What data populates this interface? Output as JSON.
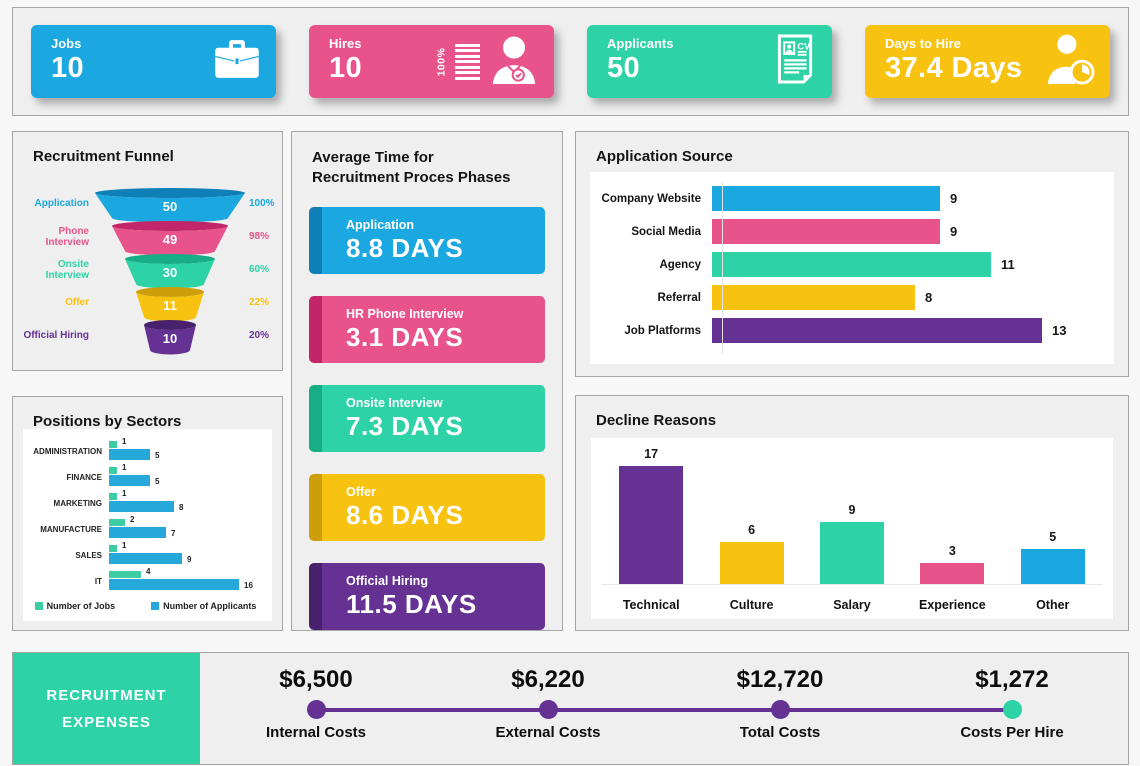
{
  "kpis": [
    {
      "label": "Jobs",
      "value": "10",
      "color": "#1BA8E0",
      "icon": "briefcase-icon"
    },
    {
      "label": "Hires",
      "value": "10",
      "side_label": "100%",
      "color": "#E8538C",
      "icon": "person-check-icon"
    },
    {
      "label": "Applicants",
      "value": "50",
      "color": "#2DD3A6",
      "icon": "cv-document-icon"
    },
    {
      "label": "Days to Hire",
      "value": "37.4 Days",
      "color": "#F8C211",
      "icon": "person-clock-icon"
    }
  ],
  "chart_data": [
    {
      "id": "recruitment_funnel",
      "type": "funnel",
      "title": "Recruitment Funnel",
      "stages": [
        {
          "label": "Application",
          "value": 50,
          "percent": "100%",
          "color": "#1BA8E0",
          "dark_color": "#0F7FB8"
        },
        {
          "label": "Phone Interview",
          "value": 49,
          "percent": "98%",
          "color": "#E8538C",
          "dark_color": "#C22568"
        },
        {
          "label": "Onsite Interview",
          "value": 30,
          "percent": "60%",
          "color": "#2DD3A6",
          "dark_color": "#17AD85"
        },
        {
          "label": "Offer",
          "value": 11,
          "percent": "22%",
          "color": "#F8C211",
          "dark_color": "#CD9E0A"
        },
        {
          "label": "Official Hiring",
          "value": 10,
          "percent": "20%",
          "color": "#653192",
          "dark_color": "#47216B"
        }
      ]
    },
    {
      "id": "avg_time_phases",
      "type": "kpi_cards",
      "title_line1": "Average Time for",
      "title_line2": "Recruitment Proces Phases",
      "items": [
        {
          "label": "Application",
          "value": "8.8 DAYS",
          "color": "#1BA8E0",
          "dark_color": "#0F7FB8"
        },
        {
          "label": "HR Phone Interview",
          "value": "3.1 DAYS",
          "color": "#E8538C",
          "dark_color": "#C22568"
        },
        {
          "label": "Onsite Interview",
          "value": "7.3 DAYS",
          "color": "#2DD3A6",
          "dark_color": "#17AD85"
        },
        {
          "label": "Offer",
          "value": "8.6 DAYS",
          "color": "#F8C211",
          "dark_color": "#CD9E0A"
        },
        {
          "label": "Official Hiring",
          "value": "11.5 DAYS",
          "color": "#653192",
          "dark_color": "#47216B"
        }
      ]
    },
    {
      "id": "application_source",
      "type": "bar",
      "orientation": "horizontal",
      "title": "Application Source",
      "categories": [
        "Company Website",
        "Social Media",
        "Agency",
        "Referral",
        "Job Platforms"
      ],
      "values": [
        9,
        9,
        11,
        8,
        13
      ],
      "colors": [
        "#1BA8E0",
        "#E8538C",
        "#2DD3A6",
        "#F8C211",
        "#653192"
      ],
      "xlim": [
        0,
        14
      ]
    },
    {
      "id": "positions_by_sectors",
      "type": "bar",
      "orientation": "horizontal",
      "grouped": true,
      "title": "Positions by Sectors",
      "categories": [
        "ADMINISTRATION",
        "FINANCE",
        "MARKETING",
        "MANUFACTURE",
        "SALES",
        "IT"
      ],
      "series": [
        {
          "name": "Number of Jobs",
          "values": [
            1,
            1,
            1,
            2,
            1,
            4
          ],
          "color": "#3ECCA4"
        },
        {
          "name": "Number of Applicants",
          "values": [
            5,
            5,
            8,
            7,
            9,
            16
          ],
          "color": "#27A8DA"
        }
      ],
      "xlim": [
        0,
        17
      ]
    },
    {
      "id": "decline_reasons",
      "type": "bar",
      "orientation": "vertical",
      "title": "Decline Reasons",
      "categories": [
        "Technical",
        "Culture",
        "Salary",
        "Experience",
        "Other"
      ],
      "values": [
        17,
        6,
        9,
        3,
        5
      ],
      "colors": [
        "#653192",
        "#F8C211",
        "#2DD3A6",
        "#E8538C",
        "#1BA8E0"
      ],
      "ylim": [
        0,
        18
      ]
    },
    {
      "id": "recruitment_expenses",
      "type": "timeline",
      "title_line1": "RECRUITMENT",
      "title_line2": "EXPENSES",
      "accent_color": "#2DD3A6",
      "line_color": "#653192",
      "points": [
        {
          "value": "$6,500",
          "label": "Internal Costs",
          "dot_color": "#653192"
        },
        {
          "value": "$6,220",
          "label": "External Costs",
          "dot_color": "#653192"
        },
        {
          "value": "$12,720",
          "label": "Total Costs",
          "dot_color": "#653192"
        },
        {
          "value": "$1,272",
          "label": "Costs Per Hire",
          "dot_color": "#2DD3A6"
        }
      ]
    }
  ]
}
